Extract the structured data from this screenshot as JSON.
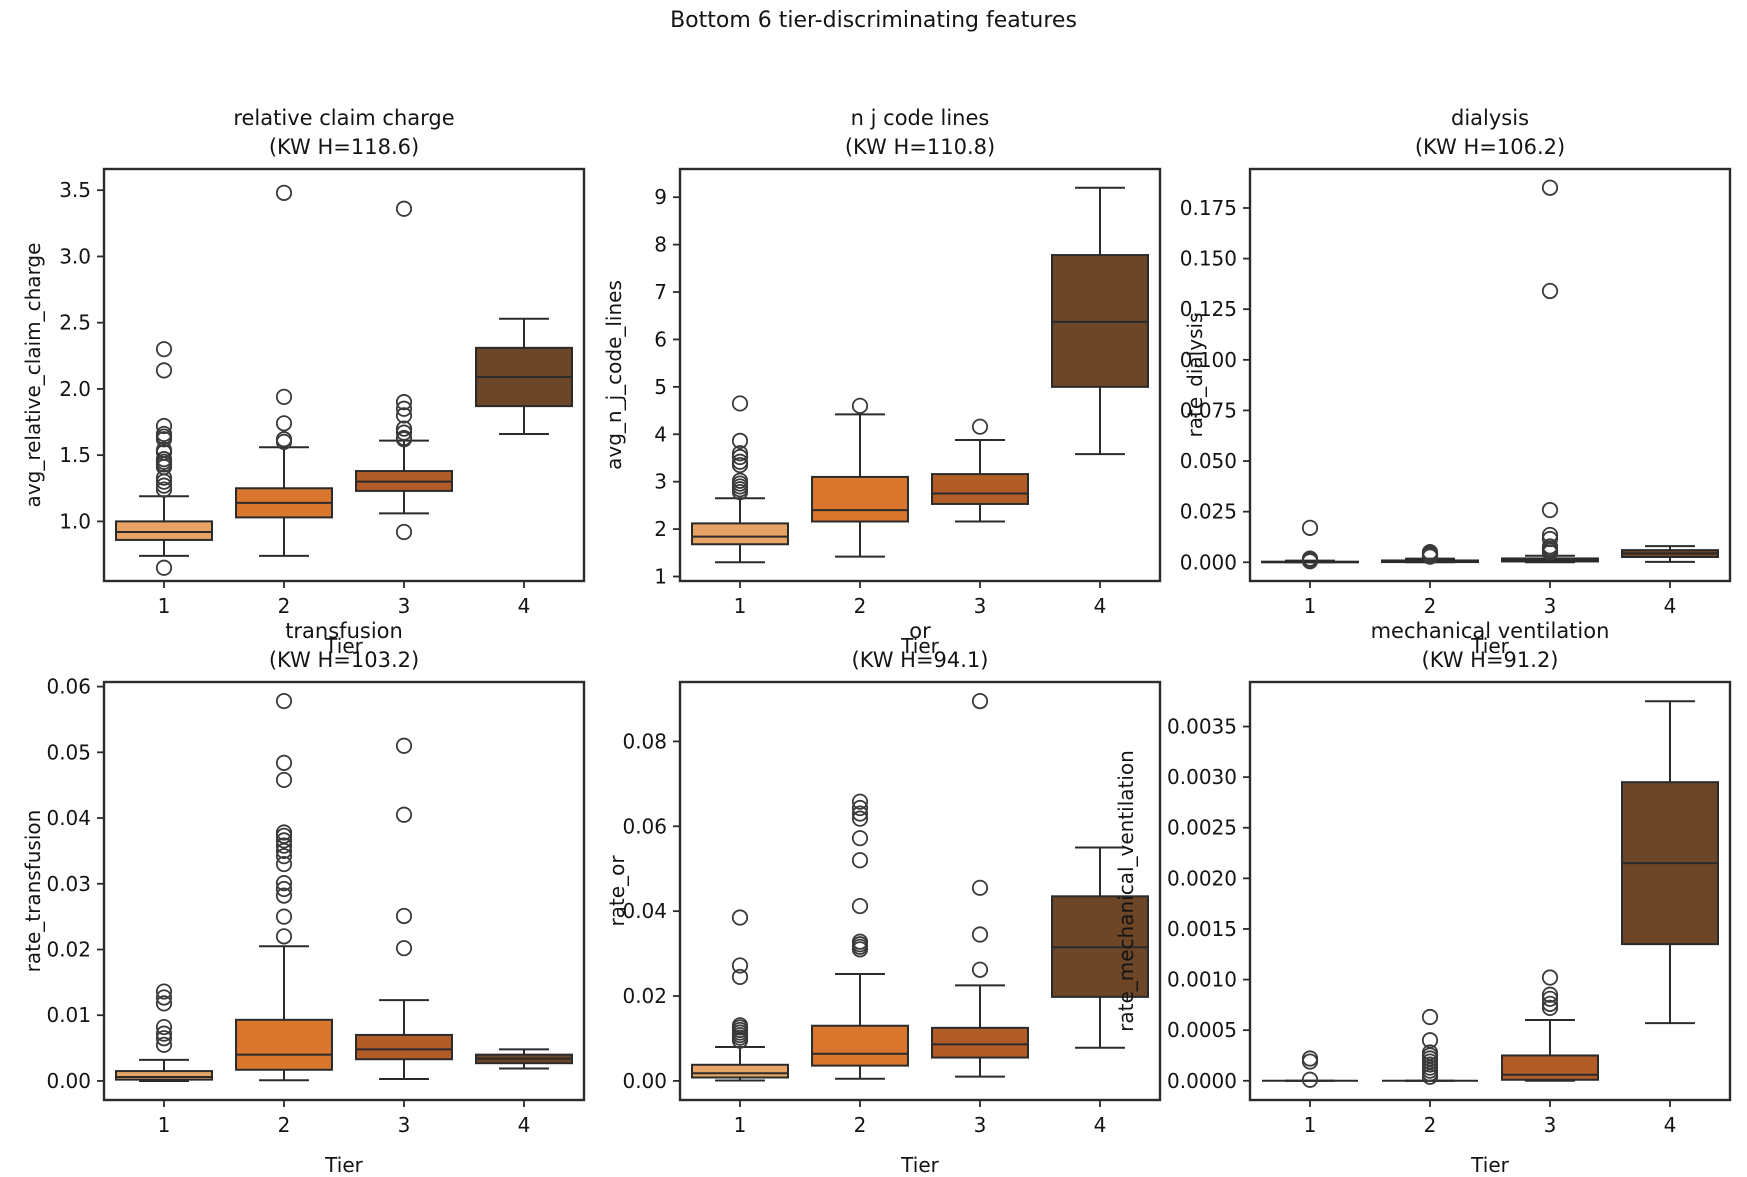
{
  "figure": {
    "title": "Bottom 6 tier-discriminating features",
    "background_color": "#ffffff",
    "frame_color": "#2b2b2b",
    "text_color": "#141414",
    "tier_colors": [
      "#E7A265",
      "#D9772F",
      "#B25C28",
      "#6C4627"
    ]
  },
  "chart_data": [
    {
      "type": "boxplot",
      "title": "relative claim charge",
      "subtitle": "(KW H=118.6)",
      "kw_h": 118.6,
      "xlabel": "Tier",
      "ylabel": "avg_relative_claim_charge",
      "categories": [
        "1",
        "2",
        "3",
        "4"
      ],
      "ylim": [
        0.55,
        3.66
      ],
      "yticks": [
        1.0,
        1.5,
        2.0,
        2.5,
        3.0,
        3.5
      ],
      "ytick_labels": [
        "1.0",
        "1.5",
        "2.0",
        "2.5",
        "3.0",
        "3.5"
      ],
      "boxes": [
        {
          "tier": "1",
          "whislo": 0.74,
          "q1": 0.86,
          "med": 0.92,
          "q3": 1.0,
          "whishi": 1.19,
          "fliers": [
            0.65,
            1.24,
            1.27,
            1.3,
            1.33,
            1.41,
            1.43,
            1.45,
            1.47,
            1.52,
            1.54,
            1.62,
            1.64,
            1.66,
            1.72,
            2.14,
            2.3
          ]
        },
        {
          "tier": "2",
          "whislo": 0.74,
          "q1": 1.03,
          "med": 1.14,
          "q3": 1.25,
          "whishi": 1.56,
          "fliers": [
            1.6,
            1.62,
            1.74,
            1.94,
            3.48
          ]
        },
        {
          "tier": "3",
          "whislo": 1.06,
          "q1": 1.23,
          "med": 1.3,
          "q3": 1.38,
          "whishi": 1.61,
          "fliers": [
            0.92,
            1.62,
            1.63,
            1.67,
            1.7,
            1.8,
            1.85,
            1.9,
            3.36
          ]
        },
        {
          "tier": "4",
          "whislo": 1.66,
          "q1": 1.87,
          "med": 2.09,
          "q3": 2.31,
          "whishi": 2.53,
          "fliers": []
        }
      ]
    },
    {
      "type": "boxplot",
      "title": "n j code lines",
      "subtitle": "(KW H=110.8)",
      "kw_h": 110.8,
      "xlabel": "Tier",
      "ylabel": "avg_n_j_code_lines",
      "categories": [
        "1",
        "2",
        "3",
        "4"
      ],
      "ylim": [
        0.905,
        9.595
      ],
      "yticks": [
        1,
        2,
        3,
        4,
        5,
        6,
        7,
        8,
        9
      ],
      "ytick_labels": [
        "1",
        "2",
        "3",
        "4",
        "5",
        "6",
        "7",
        "8",
        "9"
      ],
      "boxes": [
        {
          "tier": "1",
          "whislo": 1.3,
          "q1": 1.68,
          "med": 1.84,
          "q3": 2.12,
          "whishi": 2.65,
          "fliers": [
            2.78,
            2.84,
            2.9,
            2.96,
            3.02,
            3.35,
            3.42,
            3.52,
            3.6,
            3.86,
            4.65
          ]
        },
        {
          "tier": "2",
          "whislo": 1.42,
          "q1": 2.16,
          "med": 2.4,
          "q3": 3.1,
          "whishi": 4.42,
          "fliers": [
            4.6
          ]
        },
        {
          "tier": "3",
          "whislo": 2.16,
          "q1": 2.53,
          "med": 2.75,
          "q3": 3.16,
          "whishi": 3.88,
          "fliers": [
            4.16
          ]
        },
        {
          "tier": "4",
          "whislo": 3.58,
          "q1": 5.0,
          "med": 6.37,
          "q3": 7.78,
          "whishi": 9.2,
          "fliers": []
        }
      ]
    },
    {
      "type": "boxplot",
      "title": "dialysis",
      "subtitle": "(KW H=106.2)",
      "kw_h": 106.2,
      "xlabel": "Tier",
      "ylabel": "rate_dialysis",
      "categories": [
        "1",
        "2",
        "3",
        "4"
      ],
      "ylim": [
        -0.00925,
        0.19425
      ],
      "yticks": [
        0.0,
        0.025,
        0.05,
        0.075,
        0.1,
        0.125,
        0.15,
        0.175
      ],
      "ytick_labels": [
        "0.000",
        "0.025",
        "0.050",
        "0.075",
        "0.100",
        "0.125",
        "0.150",
        "0.175"
      ],
      "boxes": [
        {
          "tier": "1",
          "whislo": 0.0,
          "q1": 0.0,
          "med": 0.0001,
          "q3": 0.0003,
          "whishi": 0.0008,
          "fliers": [
            0.0005,
            0.001,
            0.0014,
            0.0018,
            0.017
          ]
        },
        {
          "tier": "2",
          "whislo": 0.0,
          "q1": 0.0001,
          "med": 0.0004,
          "q3": 0.0009,
          "whishi": 0.0018,
          "fliers": [
            0.0028,
            0.0033,
            0.0037,
            0.0041,
            0.0046,
            0.005
          ]
        },
        {
          "tier": "3",
          "whislo": 0.0,
          "q1": 0.0004,
          "med": 0.001,
          "q3": 0.0019,
          "whishi": 0.0032,
          "fliers": [
            0.0048,
            0.0058,
            0.0068,
            0.0078,
            0.0115,
            0.0135,
            0.0258,
            0.134,
            0.185
          ]
        },
        {
          "tier": "4",
          "whislo": 0.0002,
          "q1": 0.0026,
          "med": 0.0044,
          "q3": 0.006,
          "whishi": 0.008,
          "fliers": []
        }
      ]
    },
    {
      "type": "boxplot",
      "title": "transfusion",
      "subtitle": "(KW H=103.2)",
      "kw_h": 103.2,
      "xlabel": "Tier",
      "ylabel": "rate_transfusion",
      "categories": [
        "1",
        "2",
        "3",
        "4"
      ],
      "ylim": [
        -0.0029,
        0.0607
      ],
      "yticks": [
        0.0,
        0.01,
        0.02,
        0.03,
        0.04,
        0.05,
        0.06
      ],
      "ytick_labels": [
        "0.00",
        "0.01",
        "0.02",
        "0.03",
        "0.04",
        "0.05",
        "0.06"
      ],
      "boxes": [
        {
          "tier": "1",
          "whislo": 0.0,
          "q1": 0.0002,
          "med": 0.0006,
          "q3": 0.0015,
          "whishi": 0.0032,
          "fliers": [
            0.0055,
            0.0065,
            0.0072,
            0.0082,
            0.0118,
            0.0127,
            0.0136
          ]
        },
        {
          "tier": "2",
          "whislo": 0.0001,
          "q1": 0.0017,
          "med": 0.004,
          "q3": 0.0093,
          "whishi": 0.0205,
          "fliers": [
            0.022,
            0.025,
            0.0282,
            0.0292,
            0.0301,
            0.033,
            0.0342,
            0.035,
            0.0358,
            0.0366,
            0.0373,
            0.0378,
            0.0458,
            0.0484,
            0.0578
          ]
        },
        {
          "tier": "3",
          "whislo": 0.0003,
          "q1": 0.0033,
          "med": 0.0048,
          "q3": 0.007,
          "whishi": 0.0123,
          "fliers": [
            0.0202,
            0.0251,
            0.0405,
            0.051
          ]
        },
        {
          "tier": "4",
          "whislo": 0.0019,
          "q1": 0.0027,
          "med": 0.0034,
          "q3": 0.004,
          "whishi": 0.0048,
          "fliers": []
        }
      ]
    },
    {
      "type": "boxplot",
      "title": "or",
      "subtitle": "(KW H=94.1)",
      "kw_h": 94.1,
      "xlabel": "Tier",
      "ylabel": "rate_or",
      "categories": [
        "1",
        "2",
        "3",
        "4"
      ],
      "ylim": [
        -0.0045,
        0.094
      ],
      "yticks": [
        0.0,
        0.02,
        0.04,
        0.06,
        0.08
      ],
      "ytick_labels": [
        "0.00",
        "0.02",
        "0.04",
        "0.06",
        "0.08"
      ],
      "boxes": [
        {
          "tier": "1",
          "whislo": 0.0001,
          "q1": 0.0008,
          "med": 0.0018,
          "q3": 0.0038,
          "whishi": 0.008,
          "fliers": [
            0.0095,
            0.0102,
            0.0108,
            0.0114,
            0.012,
            0.0126,
            0.0131,
            0.0245,
            0.0272,
            0.0385
          ]
        },
        {
          "tier": "2",
          "whislo": 0.0005,
          "q1": 0.0036,
          "med": 0.0064,
          "q3": 0.013,
          "whishi": 0.0252,
          "fliers": [
            0.031,
            0.0316,
            0.0322,
            0.0328,
            0.0412,
            0.052,
            0.0572,
            0.0618,
            0.063,
            0.0643,
            0.0658
          ]
        },
        {
          "tier": "3",
          "whislo": 0.001,
          "q1": 0.0055,
          "med": 0.0086,
          "q3": 0.0125,
          "whishi": 0.0225,
          "fliers": [
            0.0262,
            0.0345,
            0.0455,
            0.0895
          ]
        },
        {
          "tier": "4",
          "whislo": 0.0078,
          "q1": 0.0198,
          "med": 0.0315,
          "q3": 0.0435,
          "whishi": 0.055,
          "fliers": []
        }
      ]
    },
    {
      "type": "boxplot",
      "title": "mechanical ventilation",
      "subtitle": "(KW H=91.2)",
      "kw_h": 91.2,
      "xlabel": "Tier",
      "ylabel": "rate_mechanical_ventilation",
      "categories": [
        "1",
        "2",
        "3",
        "4"
      ],
      "ylim": [
        -0.00019,
        0.00394
      ],
      "yticks": [
        0.0,
        0.0005,
        0.001,
        0.0015,
        0.002,
        0.0025,
        0.003,
        0.0035
      ],
      "ytick_labels": [
        "0.0000",
        "0.0005",
        "0.0010",
        "0.0015",
        "0.0020",
        "0.0025",
        "0.0030",
        "0.0035"
      ],
      "boxes": [
        {
          "tier": "1",
          "whislo": 0.0,
          "q1": 0.0,
          "med": 0.0,
          "q3": 0.0,
          "whishi": 0.0,
          "fliers": [
            1e-05,
            0.00019,
            0.00022
          ]
        },
        {
          "tier": "2",
          "whislo": 0.0,
          "q1": 0.0,
          "med": 0.0,
          "q3": 0.0,
          "whishi": 0.0,
          "fliers": [
            4e-05,
            7e-05,
            0.0001,
            0.00013,
            0.00016,
            0.00019,
            0.00022,
            0.00025,
            0.00028,
            0.0004,
            0.00063
          ]
        },
        {
          "tier": "3",
          "whislo": 0.0,
          "q1": 1e-05,
          "med": 6e-05,
          "q3": 0.00025,
          "whishi": 0.0006,
          "fliers": [
            0.00072,
            0.00076,
            0.00081,
            0.00085,
            0.00102
          ]
        },
        {
          "tier": "4",
          "whislo": 0.00057,
          "q1": 0.00135,
          "med": 0.00215,
          "q3": 0.00295,
          "whishi": 0.00375,
          "fliers": []
        }
      ]
    }
  ]
}
